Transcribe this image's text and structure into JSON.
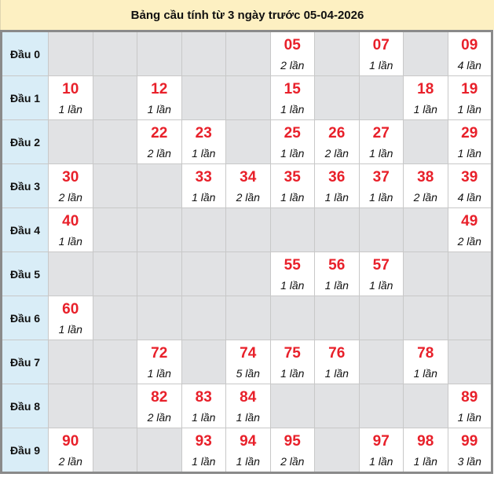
{
  "title": "Bảng cầu tính từ 3 ngày trước 05-04-2026",
  "colors": {
    "number": "#e8202a",
    "title_bg": "#fdf0c2",
    "head_bg": "#d9edf7",
    "empty_bg": "#e1e2e4",
    "hit_bg": "#ffffff"
  },
  "rows": [
    {
      "label": "Đầu 0",
      "cells": [
        null,
        null,
        null,
        null,
        null,
        {
          "num": "05",
          "count": "2 lần"
        },
        null,
        {
          "num": "07",
          "count": "1 lần"
        },
        null,
        {
          "num": "09",
          "count": "4 lần"
        }
      ]
    },
    {
      "label": "Đầu 1",
      "cells": [
        {
          "num": "10",
          "count": "1 lần"
        },
        null,
        {
          "num": "12",
          "count": "1 lần"
        },
        null,
        null,
        {
          "num": "15",
          "count": "1 lần"
        },
        null,
        null,
        {
          "num": "18",
          "count": "1 lần"
        },
        {
          "num": "19",
          "count": "1 lần"
        }
      ]
    },
    {
      "label": "Đầu 2",
      "cells": [
        null,
        null,
        {
          "num": "22",
          "count": "2 lần"
        },
        {
          "num": "23",
          "count": "1 lần"
        },
        null,
        {
          "num": "25",
          "count": "1 lần"
        },
        {
          "num": "26",
          "count": "2 lần"
        },
        {
          "num": "27",
          "count": "1 lần"
        },
        null,
        {
          "num": "29",
          "count": "1 lần"
        }
      ]
    },
    {
      "label": "Đầu 3",
      "cells": [
        {
          "num": "30",
          "count": "2 lần"
        },
        null,
        null,
        {
          "num": "33",
          "count": "1 lần"
        },
        {
          "num": "34",
          "count": "2 lần"
        },
        {
          "num": "35",
          "count": "1 lần"
        },
        {
          "num": "36",
          "count": "1 lần"
        },
        {
          "num": "37",
          "count": "1 lần"
        },
        {
          "num": "38",
          "count": "2 lần"
        },
        {
          "num": "39",
          "count": "4 lần"
        }
      ]
    },
    {
      "label": "Đầu 4",
      "cells": [
        {
          "num": "40",
          "count": "1 lần"
        },
        null,
        null,
        null,
        null,
        null,
        null,
        null,
        null,
        {
          "num": "49",
          "count": "2 lần"
        }
      ]
    },
    {
      "label": "Đầu 5",
      "cells": [
        null,
        null,
        null,
        null,
        null,
        {
          "num": "55",
          "count": "1 lần"
        },
        {
          "num": "56",
          "count": "1 lần"
        },
        {
          "num": "57",
          "count": "1 lần"
        },
        null,
        null
      ]
    },
    {
      "label": "Đầu 6",
      "cells": [
        {
          "num": "60",
          "count": "1 lần"
        },
        null,
        null,
        null,
        null,
        null,
        null,
        null,
        null,
        null
      ]
    },
    {
      "label": "Đầu 7",
      "cells": [
        null,
        null,
        {
          "num": "72",
          "count": "1 lần"
        },
        null,
        {
          "num": "74",
          "count": "5 lần"
        },
        {
          "num": "75",
          "count": "1 lần"
        },
        {
          "num": "76",
          "count": "1 lần"
        },
        null,
        {
          "num": "78",
          "count": "1 lần"
        },
        null
      ]
    },
    {
      "label": "Đầu 8",
      "cells": [
        null,
        null,
        {
          "num": "82",
          "count": "2 lần"
        },
        {
          "num": "83",
          "count": "1 lần"
        },
        {
          "num": "84",
          "count": "1 lần"
        },
        null,
        null,
        null,
        null,
        {
          "num": "89",
          "count": "1 lần"
        }
      ]
    },
    {
      "label": "Đầu 9",
      "cells": [
        {
          "num": "90",
          "count": "2 lần"
        },
        null,
        null,
        {
          "num": "93",
          "count": "1 lần"
        },
        {
          "num": "94",
          "count": "1 lần"
        },
        {
          "num": "95",
          "count": "2 lần"
        },
        null,
        {
          "num": "97",
          "count": "1 lần"
        },
        {
          "num": "98",
          "count": "1 lần"
        },
        {
          "num": "99",
          "count": "3 lần"
        }
      ]
    }
  ]
}
